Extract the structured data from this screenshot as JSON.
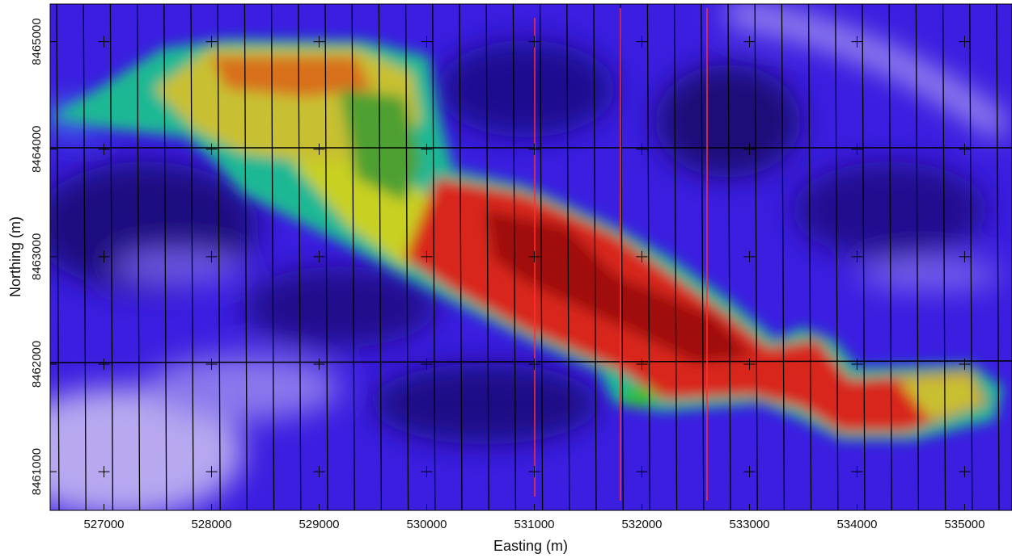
{
  "chart_data": {
    "type": "heatmap",
    "xlabel": "Easting (m)",
    "ylabel": "Northing (m)",
    "xlim": [
      526500,
      535440
    ],
    "ylim": [
      8460640,
      8465350
    ],
    "xticks": [
      527000,
      528000,
      529000,
      530000,
      531000,
      532000,
      533000,
      534000,
      535000
    ],
    "yticks": [
      8461000,
      8462000,
      8463000,
      8464000,
      8465000
    ]
  }
}
